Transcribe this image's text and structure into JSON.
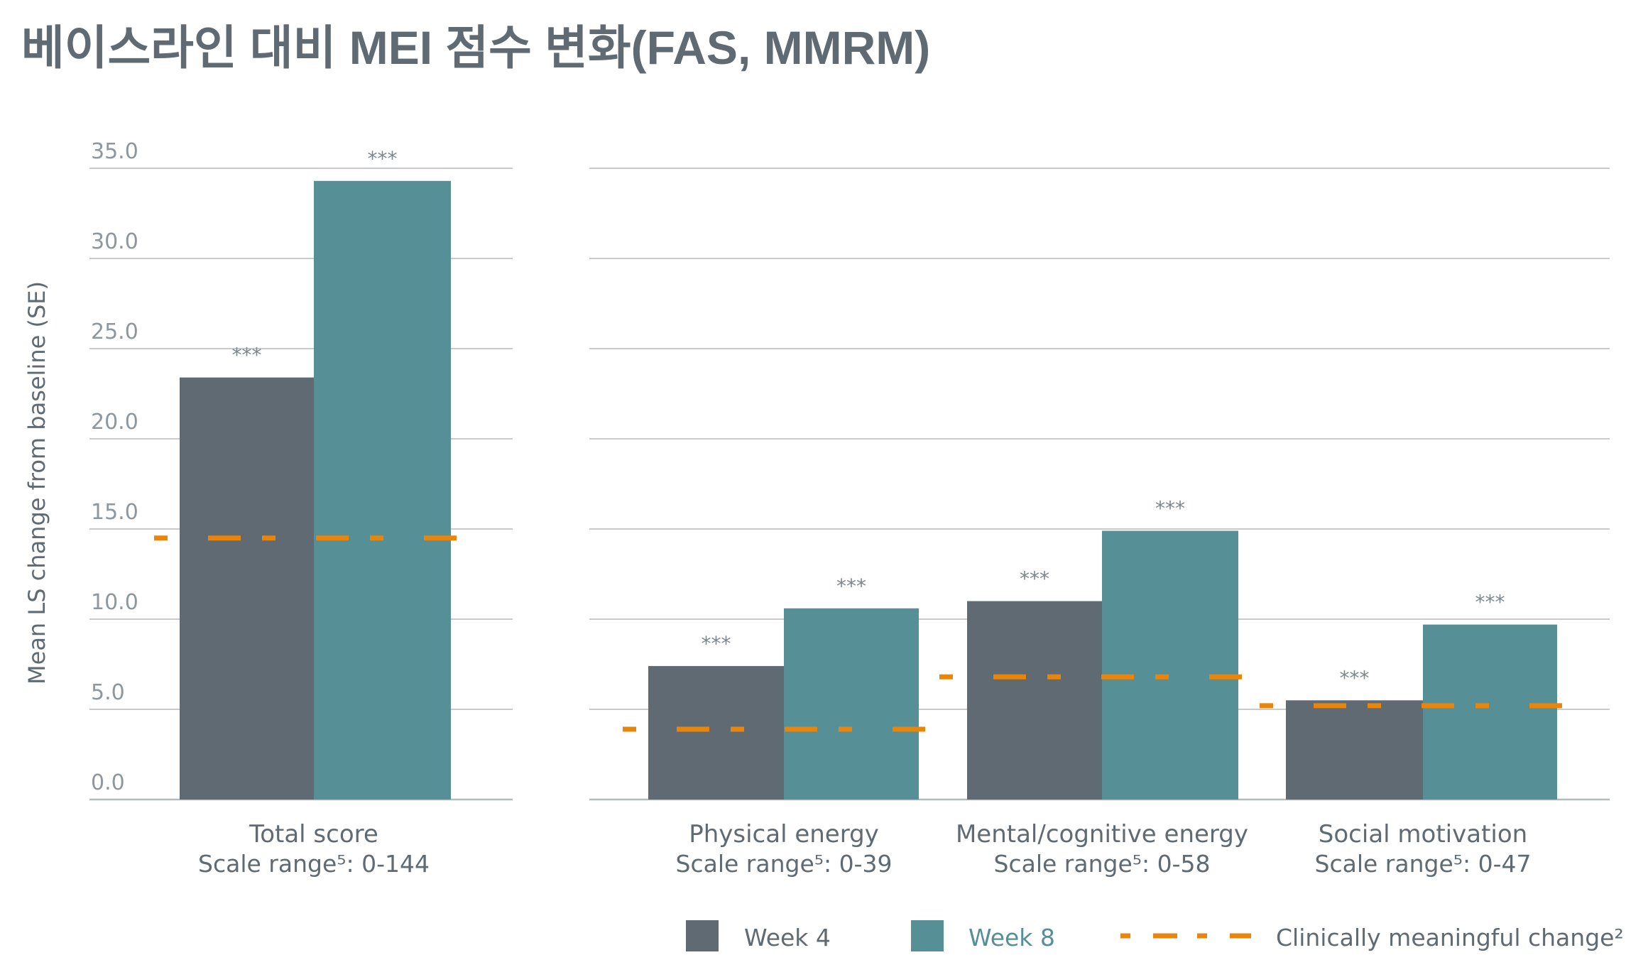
{
  "title": "베이스라인 대비 MEI 점수 변화(FAS, MMRM)",
  "colors": {
    "week4": "#5f6a72",
    "week8": "#568f96",
    "cmc": "#e8850c",
    "grid": "#b5babd"
  },
  "chart_data": {
    "type": "bar",
    "title": "베이스라인 대비 MEI 점수 변화(FAS, MMRM)",
    "ylabel": "Mean LS change from baseline (SE)",
    "xlabel": "",
    "ylim": [
      0,
      35
    ],
    "yticks": [
      "0.0",
      "5.0",
      "10.0",
      "15.0",
      "20.0",
      "25.0",
      "30.0",
      "35.0"
    ],
    "grid": true,
    "legend_position": "bottom-right",
    "legend": [
      "Week 4",
      "Week 8",
      "Clinically meaningful change²"
    ],
    "categories": [
      {
        "name": "Total score",
        "scale": "Scale range⁵: 0-144",
        "panel": "left"
      },
      {
        "name": "Physical energy",
        "scale": "Scale range⁵: 0-39",
        "panel": "right"
      },
      {
        "name": "Mental/cognitive energy",
        "scale": "Scale range⁵: 0-58",
        "panel": "right"
      },
      {
        "name": "Social motivation",
        "scale": "Scale range⁵: 0-47",
        "panel": "right"
      }
    ],
    "series": [
      {
        "name": "Week 4",
        "values": [
          23.4,
          7.4,
          11.0,
          5.5
        ],
        "significance": [
          "***",
          "***",
          "***",
          "***"
        ]
      },
      {
        "name": "Week 8",
        "values": [
          34.3,
          10.6,
          14.9,
          9.7
        ],
        "significance": [
          "***",
          "***",
          "***",
          "***"
        ]
      }
    ],
    "clinically_meaningful_change": [
      14.5,
      3.9,
      6.8,
      5.2
    ]
  }
}
